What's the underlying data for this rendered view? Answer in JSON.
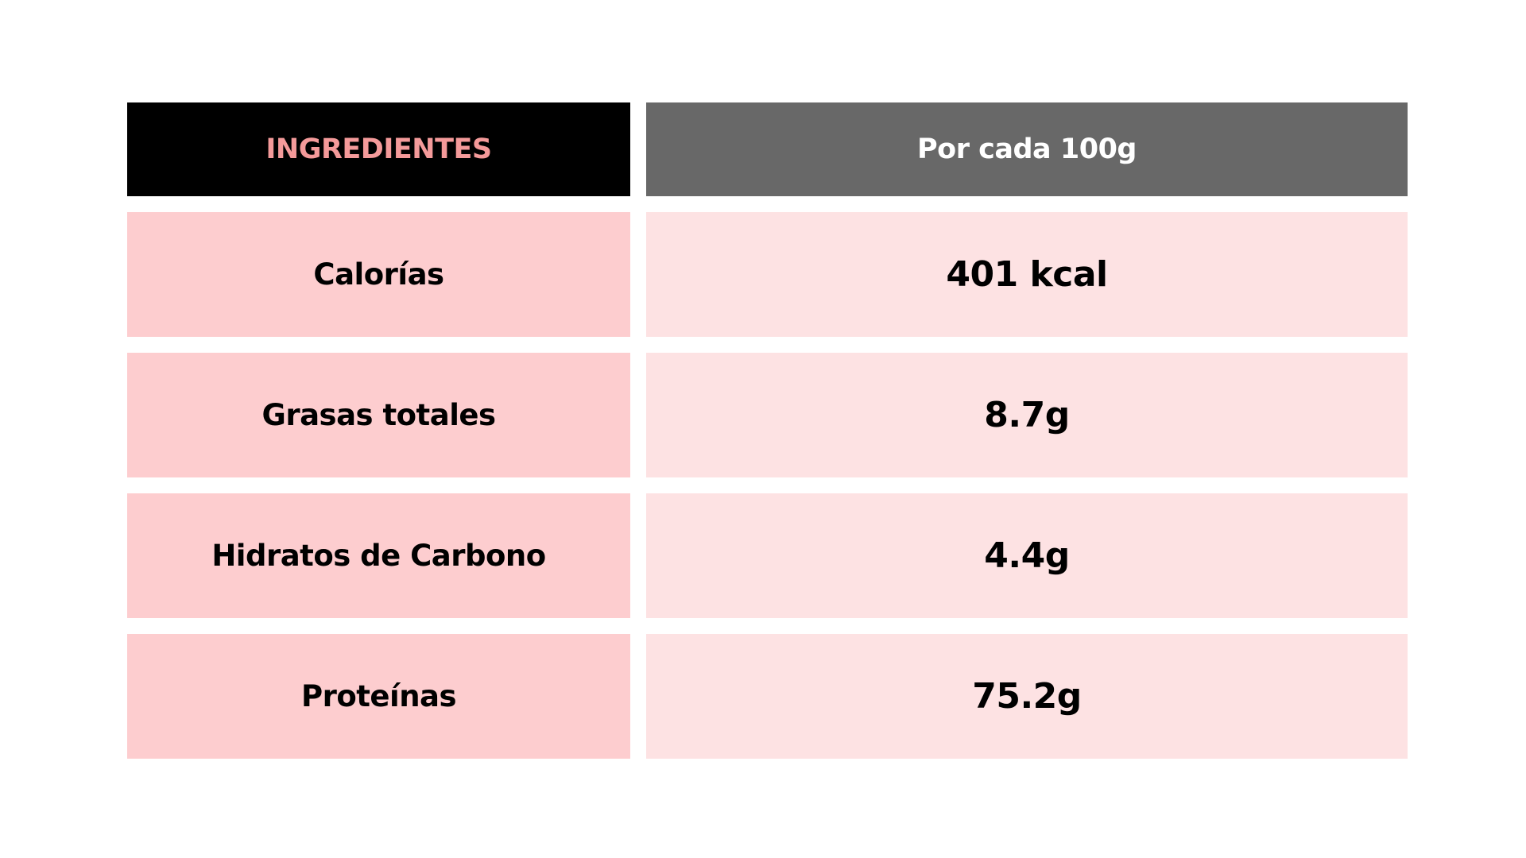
{
  "header": {
    "left": "INGREDIENTES",
    "right": "Por cada 100g"
  },
  "rows": [
    {
      "label": "Calorías",
      "value": "401 kcal"
    },
    {
      "label": "Grasas totales",
      "value": "8.7g"
    },
    {
      "label": "Hidratos de Carbono",
      "value": "4.4g"
    },
    {
      "label": "Proteínas",
      "value": "75.2g"
    }
  ],
  "colors": {
    "header_left_bg": "#000000",
    "header_left_text": "#f49a9a",
    "header_right_bg": "#686868",
    "header_right_text": "#ffffff",
    "label_bg": "#fdcdcf",
    "value_bg": "#fde2e3"
  }
}
